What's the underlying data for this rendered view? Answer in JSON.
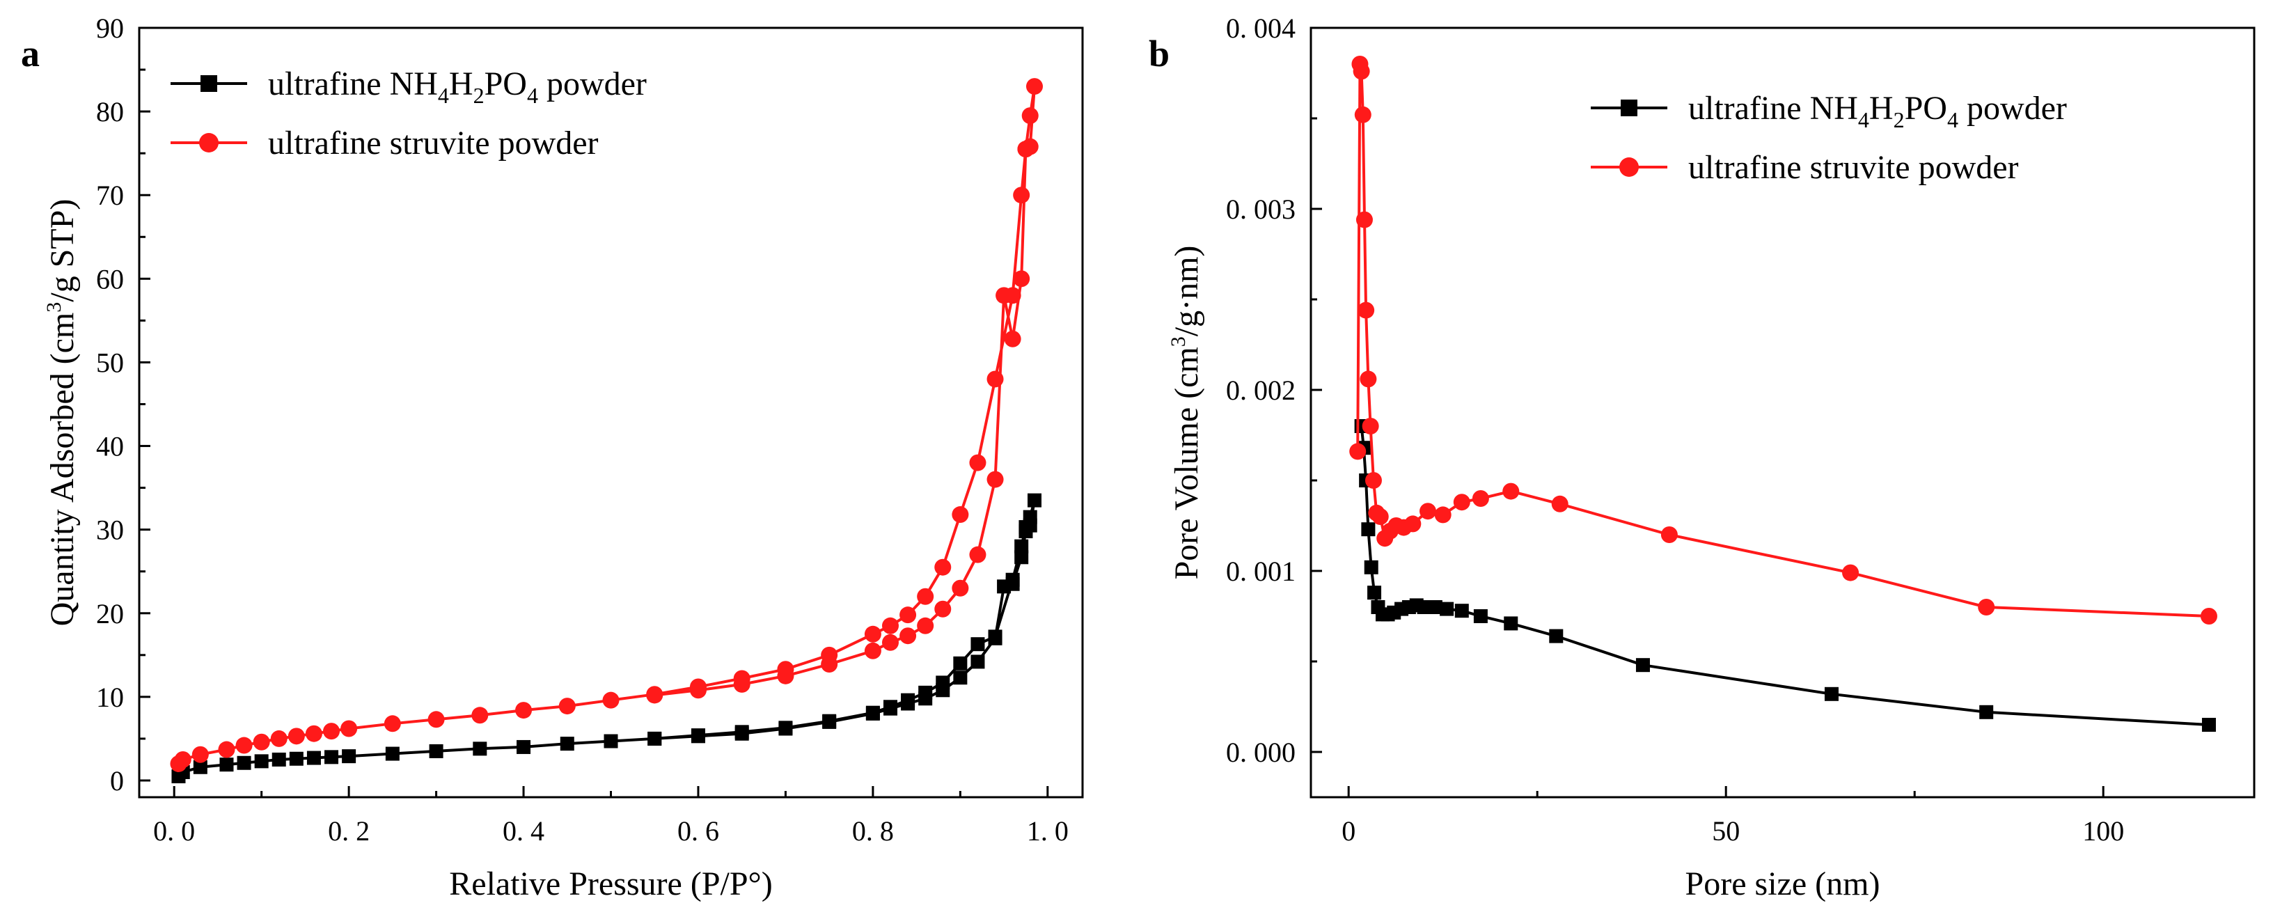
{
  "colors": {
    "black": "#000000",
    "red": "#ff1a1a"
  },
  "chart_data": [
    {
      "panel_label": "a",
      "type": "line",
      "xlabel": "Relative Pressure  (P/P°)",
      "ylabel_main": "Quantity Adsorbed (cm",
      "ylabel_sup": "3",
      "ylabel_tail": "/g STP)",
      "xlim": [
        -0.04,
        1.04
      ],
      "ylim": [
        -2,
        90
      ],
      "xticks": [
        0.0,
        0.2,
        0.4,
        0.6,
        0.8,
        1.0
      ],
      "xtick_labels": [
        "0. 0",
        "0. 2",
        "0. 4",
        "0. 6",
        "0. 8",
        "1. 0"
      ],
      "yticks": [
        0,
        10,
        20,
        30,
        40,
        50,
        60,
        70,
        80,
        90
      ],
      "ytick_labels": [
        "0",
        "10",
        "20",
        "30",
        "40",
        "50",
        "60",
        "70",
        "80",
        "90"
      ],
      "legend_position": "top-left",
      "series": [
        {
          "name": "ultrafine NH4H2PO4 powder",
          "legend_parts": [
            "ultrafine NH",
            "4",
            "H",
            "2",
            "PO",
            "4",
            " powder"
          ],
          "color": "black",
          "marker": "square",
          "x": [
            0.005,
            0.01,
            0.03,
            0.06,
            0.08,
            0.1,
            0.12,
            0.14,
            0.16,
            0.18,
            0.2,
            0.25,
            0.3,
            0.35,
            0.4,
            0.45,
            0.5,
            0.55,
            0.6,
            0.65,
            0.7,
            0.75,
            0.8,
            0.82,
            0.84,
            0.86,
            0.88,
            0.9,
            0.92,
            0.94,
            0.96,
            0.97,
            0.975,
            0.98,
            0.985,
            0.98,
            0.975,
            0.97,
            0.96,
            0.95,
            0.94,
            0.92,
            0.9,
            0.88,
            0.86,
            0.84,
            0.82,
            0.8,
            0.75,
            0.7,
            0.65,
            0.6,
            0.55
          ],
          "y": [
            0.5,
            1.0,
            1.6,
            1.9,
            2.1,
            2.3,
            2.5,
            2.6,
            2.7,
            2.8,
            2.9,
            3.2,
            3.5,
            3.8,
            4.0,
            4.4,
            4.7,
            5.0,
            5.4,
            5.8,
            6.3,
            7.1,
            8.1,
            8.8,
            9.6,
            10.5,
            11.7,
            14.0,
            16.3,
            17.2,
            24.0,
            28.0,
            30.3,
            31.5,
            33.5,
            30.5,
            29.8,
            26.7,
            23.5,
            23.2,
            17.0,
            14.2,
            12.3,
            10.8,
            9.8,
            9.2,
            8.6,
            8.0,
            7.0,
            6.2,
            5.6,
            5.3,
            5.0
          ]
        },
        {
          "name": "ultrafine  struvite  powder",
          "legend_parts": [
            "ultrafine  struvite  powder"
          ],
          "color": "red",
          "marker": "circle",
          "x": [
            0.005,
            0.01,
            0.03,
            0.06,
            0.08,
            0.1,
            0.12,
            0.14,
            0.16,
            0.18,
            0.2,
            0.25,
            0.3,
            0.35,
            0.4,
            0.45,
            0.5,
            0.55,
            0.6,
            0.65,
            0.7,
            0.75,
            0.8,
            0.82,
            0.84,
            0.86,
            0.88,
            0.9,
            0.92,
            0.94,
            0.96,
            0.97,
            0.975,
            0.98,
            0.985,
            0.98,
            0.975,
            0.97,
            0.96,
            0.95,
            0.94,
            0.92,
            0.9,
            0.88,
            0.86,
            0.84,
            0.82,
            0.8,
            0.75,
            0.7,
            0.65,
            0.6,
            0.55
          ],
          "y": [
            2.0,
            2.5,
            3.1,
            3.7,
            4.2,
            4.6,
            5.0,
            5.3,
            5.6,
            5.9,
            6.2,
            6.8,
            7.3,
            7.8,
            8.4,
            8.9,
            9.6,
            10.3,
            11.2,
            12.2,
            13.3,
            15.0,
            17.5,
            18.5,
            19.8,
            22.0,
            25.5,
            31.8,
            38.0,
            48.0,
            58.0,
            70.0,
            75.5,
            79.5,
            83.0,
            75.8,
            75.5,
            60.0,
            52.8,
            58.0,
            36.0,
            27.0,
            23.0,
            20.5,
            18.5,
            17.3,
            16.5,
            15.5,
            13.9,
            12.5,
            11.5,
            10.8,
            10.2
          ]
        }
      ]
    },
    {
      "panel_label": "b",
      "type": "line",
      "xlabel": "Pore size (nm)",
      "ylabel_main": "Pore Volume  (cm",
      "ylabel_sup": "3",
      "ylabel_tail": "/g·nm)",
      "xlim": [
        -5,
        120
      ],
      "ylim": [
        -0.00025,
        0.004
      ],
      "xticks": [
        0,
        50,
        100
      ],
      "xtick_labels": [
        "0",
        "50",
        "100"
      ],
      "xticks_minor": [
        25,
        75
      ],
      "yticks": [
        0.0,
        0.001,
        0.002,
        0.003,
        0.004
      ],
      "ytick_labels": [
        "0. 000",
        "0. 001",
        "0. 002",
        "0. 003",
        "0. 004"
      ],
      "legend_position": "top-right",
      "series": [
        {
          "name": "ultrafine NH4H2PO4 powder",
          "legend_parts": [
            "ultrafine NH",
            "4",
            "H",
            "2",
            "PO",
            "4",
            " powder"
          ],
          "color": "black",
          "marker": "square",
          "x": [
            1.7,
            2.0,
            2.3,
            2.6,
            3.0,
            3.4,
            3.9,
            4.5,
            5.2,
            6.0,
            7.0,
            8.0,
            9.0,
            10.0,
            11.5,
            13.0,
            15.0,
            17.5,
            21.5,
            27.5,
            39.0,
            64.0,
            84.5,
            114.0
          ],
          "y": [
            0.0018,
            0.00168,
            0.0015,
            0.00123,
            0.00102,
            0.00088,
            0.0008,
            0.00076,
            0.00076,
            0.00077,
            0.00079,
            0.0008,
            0.00081,
            0.0008,
            0.0008,
            0.00079,
            0.00078,
            0.00075,
            0.00071,
            0.00064,
            0.00048,
            0.00032,
            0.00022,
            0.00015
          ]
        },
        {
          "name": "ultrafine struvite powder",
          "legend_parts": [
            "ultrafine struvite powder"
          ],
          "color": "red",
          "marker": "circle",
          "x": [
            1.2,
            1.5,
            1.7,
            1.9,
            2.1,
            2.3,
            2.6,
            2.9,
            3.3,
            3.7,
            4.2,
            4.8,
            5.5,
            6.3,
            7.3,
            8.5,
            10.5,
            12.5,
            15.0,
            17.5,
            21.5,
            28.0,
            42.5,
            66.5,
            84.5,
            114.0
          ],
          "y": [
            0.00166,
            0.0038,
            0.00376,
            0.00352,
            0.00294,
            0.00244,
            0.00206,
            0.0018,
            0.0015,
            0.00132,
            0.0013,
            0.00118,
            0.00122,
            0.00125,
            0.00124,
            0.00126,
            0.00133,
            0.00131,
            0.00138,
            0.0014,
            0.00144,
            0.00137,
            0.0012,
            0.00099,
            0.0008,
            0.00075
          ]
        }
      ]
    }
  ]
}
